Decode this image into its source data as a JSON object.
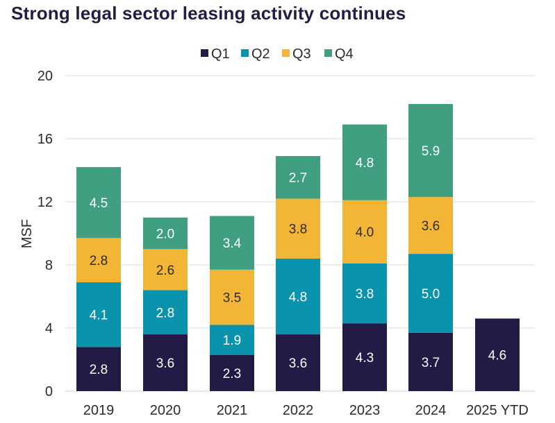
{
  "chart_data": {
    "type": "bar",
    "stacked": true,
    "title": "Strong legal sector leasing activity continues",
    "xlabel": "",
    "ylabel": "MSF",
    "ylim": [
      0,
      20
    ],
    "yticks": [
      "0",
      "4",
      "8",
      "12",
      "16",
      "20"
    ],
    "grid": true,
    "legend_position": "top-center",
    "categories": [
      "2019",
      "2020",
      "2021",
      "2022",
      "2023",
      "2024",
      "2025 YTD"
    ],
    "series": [
      {
        "name": "Q1",
        "color": "#221b45",
        "values": [
          2.8,
          3.6,
          2.3,
          3.6,
          4.3,
          3.7,
          4.6
        ],
        "labels": [
          "2.8",
          "3.6",
          "2.3",
          "3.6",
          "4.3",
          "3.7",
          "4.6"
        ]
      },
      {
        "name": "Q2",
        "color": "#0a93ad",
        "values": [
          4.1,
          2.8,
          1.9,
          4.8,
          3.8,
          5.0,
          null
        ],
        "labels": [
          "4.1",
          "2.8",
          "1.9",
          "4.8",
          "3.8",
          "5.0",
          ""
        ]
      },
      {
        "name": "Q3",
        "color": "#f2b535",
        "values": [
          2.8,
          2.6,
          3.5,
          3.8,
          4.0,
          3.6,
          null
        ],
        "labels": [
          "2.8",
          "2.6",
          "3.5",
          "3.8",
          "4.0",
          "3.6",
          ""
        ]
      },
      {
        "name": "Q4",
        "color": "#3f9f80",
        "values": [
          4.5,
          2.0,
          3.4,
          2.7,
          4.8,
          5.9,
          null
        ],
        "labels": [
          "4.5",
          "2.0",
          "3.4",
          "2.7",
          "4.8",
          "5.9",
          ""
        ]
      }
    ]
  }
}
